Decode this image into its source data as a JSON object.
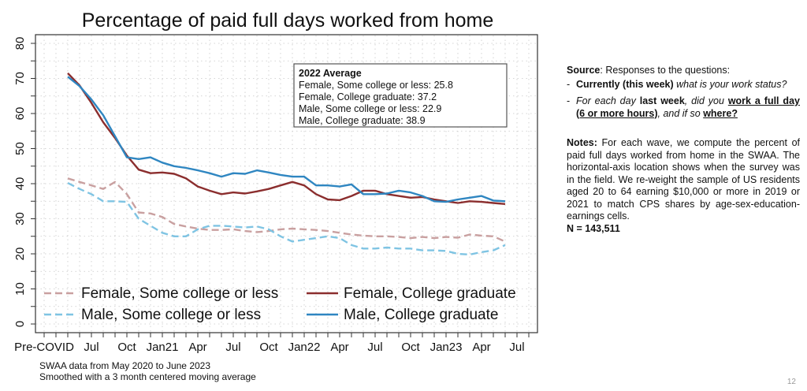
{
  "chart_data": {
    "type": "line",
    "title": "Percentage of paid full days worked from home",
    "xlabel": "",
    "ylabel": "",
    "ylim": [
      0,
      80
    ],
    "yticks": [
      0,
      10,
      20,
      30,
      40,
      50,
      60,
      70,
      80
    ],
    "xtick_labels": [
      "Pre-COVID",
      "Jul",
      "Oct",
      "Jan21",
      "Apr",
      "Jul",
      "Oct",
      "Jan22",
      "Apr",
      "Jul",
      "Oct",
      "Jan23",
      "Apr",
      "Jul"
    ],
    "grid": true,
    "legend_position": "bottom-inside",
    "x": [
      "May20",
      "Jun20",
      "Jul20",
      "Aug20",
      "Sep20",
      "Oct20",
      "Nov20",
      "Dec20",
      "Jan21",
      "Feb21",
      "Mar21",
      "Apr21",
      "May21",
      "Jun21",
      "Jul21",
      "Aug21",
      "Sep21",
      "Oct21",
      "Nov21",
      "Dec21",
      "Jan22",
      "Feb22",
      "Mar22",
      "Apr22",
      "May22",
      "Jun22",
      "Jul22",
      "Aug22",
      "Sep22",
      "Oct22",
      "Nov22",
      "Dec22",
      "Jan23",
      "Feb23",
      "Mar23",
      "Apr23",
      "May23",
      "Jun23"
    ],
    "series": [
      {
        "name": "Female, Some college or less",
        "style": "dashed",
        "color": "#c9a0a0",
        "values": [
          41.5,
          40.5,
          39.5,
          38.5,
          40.5,
          37.0,
          31.8,
          31.5,
          30.5,
          28.5,
          27.8,
          27.2,
          26.8,
          26.8,
          27.0,
          26.5,
          26.2,
          26.5,
          27.0,
          27.2,
          27.0,
          26.8,
          26.5,
          26.0,
          25.5,
          25.2,
          25.0,
          25.0,
          24.8,
          24.5,
          24.8,
          24.5,
          24.8,
          24.6,
          25.5,
          25.2,
          25.0,
          23.5
        ]
      },
      {
        "name": "Female, College graduate",
        "style": "solid",
        "color": "#8b2e2e",
        "values": [
          71.5,
          68.0,
          63.0,
          57.5,
          53.0,
          48.0,
          44.0,
          43.0,
          43.2,
          42.8,
          41.5,
          39.2,
          38.0,
          37.0,
          37.5,
          37.2,
          37.8,
          38.5,
          39.5,
          40.5,
          39.5,
          37.0,
          35.5,
          35.3,
          36.5,
          38.0,
          38.0,
          37.0,
          36.5,
          36.0,
          36.2,
          35.5,
          35.0,
          34.5,
          35.0,
          34.8,
          34.5,
          34.2
        ]
      },
      {
        "name": "Male, Some college or less",
        "style": "dashed",
        "color": "#7fc4e3",
        "values": [
          40.2,
          38.5,
          37.0,
          35.0,
          35.0,
          34.8,
          30.0,
          28.0,
          26.0,
          25.0,
          25.0,
          27.0,
          28.0,
          28.0,
          27.8,
          27.5,
          27.8,
          27.0,
          25.0,
          23.5,
          24.0,
          24.5,
          25.0,
          24.5,
          22.5,
          21.5,
          21.5,
          21.8,
          21.5,
          21.5,
          21.0,
          21.0,
          20.8,
          20.0,
          19.8,
          20.5,
          21.0,
          22.5
        ]
      },
      {
        "name": "Male, College graduate",
        "style": "solid",
        "color": "#2f86c1",
        "values": [
          70.5,
          67.8,
          64.0,
          59.5,
          53.5,
          47.5,
          47.0,
          47.5,
          46.0,
          45.0,
          44.5,
          43.8,
          43.0,
          42.0,
          43.0,
          42.8,
          43.8,
          43.2,
          42.5,
          42.0,
          42.0,
          39.5,
          39.5,
          39.2,
          39.8,
          37.0,
          37.0,
          37.2,
          38.0,
          37.5,
          36.5,
          35.0,
          34.8,
          35.5,
          36.0,
          36.5,
          35.2,
          35.0
        ]
      }
    ],
    "annotation_box": {
      "title": "2022 Average",
      "lines": [
        "Female, Some college or less: 25.8",
        "Female, College graduate: 37.2",
        "Male, Some college or less: 22.9",
        "Male, College graduate: 38.9"
      ]
    }
  },
  "footnote": {
    "line1": "SWAA data from May 2020 to June 2023",
    "line2": "Smoothed with a 3 month centered moving average"
  },
  "side_text": {
    "source_label": "Source",
    "source_rest": ": Responses to the questions:",
    "q1_bold": "Currently (this week)",
    "q1_italic": " what is your work status?",
    "q2_italic1": "For each day ",
    "q2_bold1": "last week",
    "q2_italic2": ", did you ",
    "q2_bold_underline": "work a full day (6 or more hours)",
    "q2_italic3": ", and if so ",
    "q2_bold_underline2": "where?",
    "notes_label": "Notes:",
    "notes_text": " For each wave, we compute the percent of paid full days worked from home in the SWAA. The horizontal-axis location shows when the survey was in the field. We re-weight the sample of US residents aged 20 to 64 earning $10,000 or more in 2019 or 2021 to match CPS shares by age-sex-education-earnings cells.",
    "n_label": "N = 143,511"
  },
  "page_number": "12"
}
